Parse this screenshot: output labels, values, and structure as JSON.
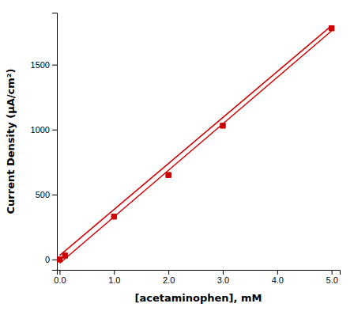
{
  "chart_data": {
    "type": "scatter",
    "xlabel": "[acetaminophen], mM",
    "ylabel": "Current Density (μA/cm²)",
    "series": [
      {
        "type": "line",
        "color": "#cc0000",
        "x": [
          0.0,
          5.0
        ],
        "values": [
          -30.0,
          1760.0
        ]
      },
      {
        "type": "line",
        "color": "#cc0000",
        "x": [
          0.0,
          5.0
        ],
        "values": [
          30.0,
          1800.0
        ]
      },
      {
        "type": "scatter",
        "color": "#cc0000",
        "marker": "square",
        "x": [
          0.0,
          0.1,
          1.0,
          2.0,
          3.0,
          5.0
        ],
        "values": [
          0.0,
          30.0,
          330.0,
          650.0,
          1030.0,
          1780.0
        ]
      }
    ],
    "xlim": [
      -0.05,
      5.15
    ],
    "ylim": [
      -80,
      1900
    ],
    "xticks": [
      {
        "value": 0,
        "label": "0.0"
      },
      {
        "value": 1,
        "label": "1.0"
      },
      {
        "value": 2,
        "label": "2.0"
      },
      {
        "value": 3,
        "label": "3.0"
      },
      {
        "value": 4,
        "label": "4.0"
      },
      {
        "value": 5,
        "label": "5.0"
      }
    ],
    "yticks": [
      0,
      500,
      1000,
      1500
    ]
  }
}
